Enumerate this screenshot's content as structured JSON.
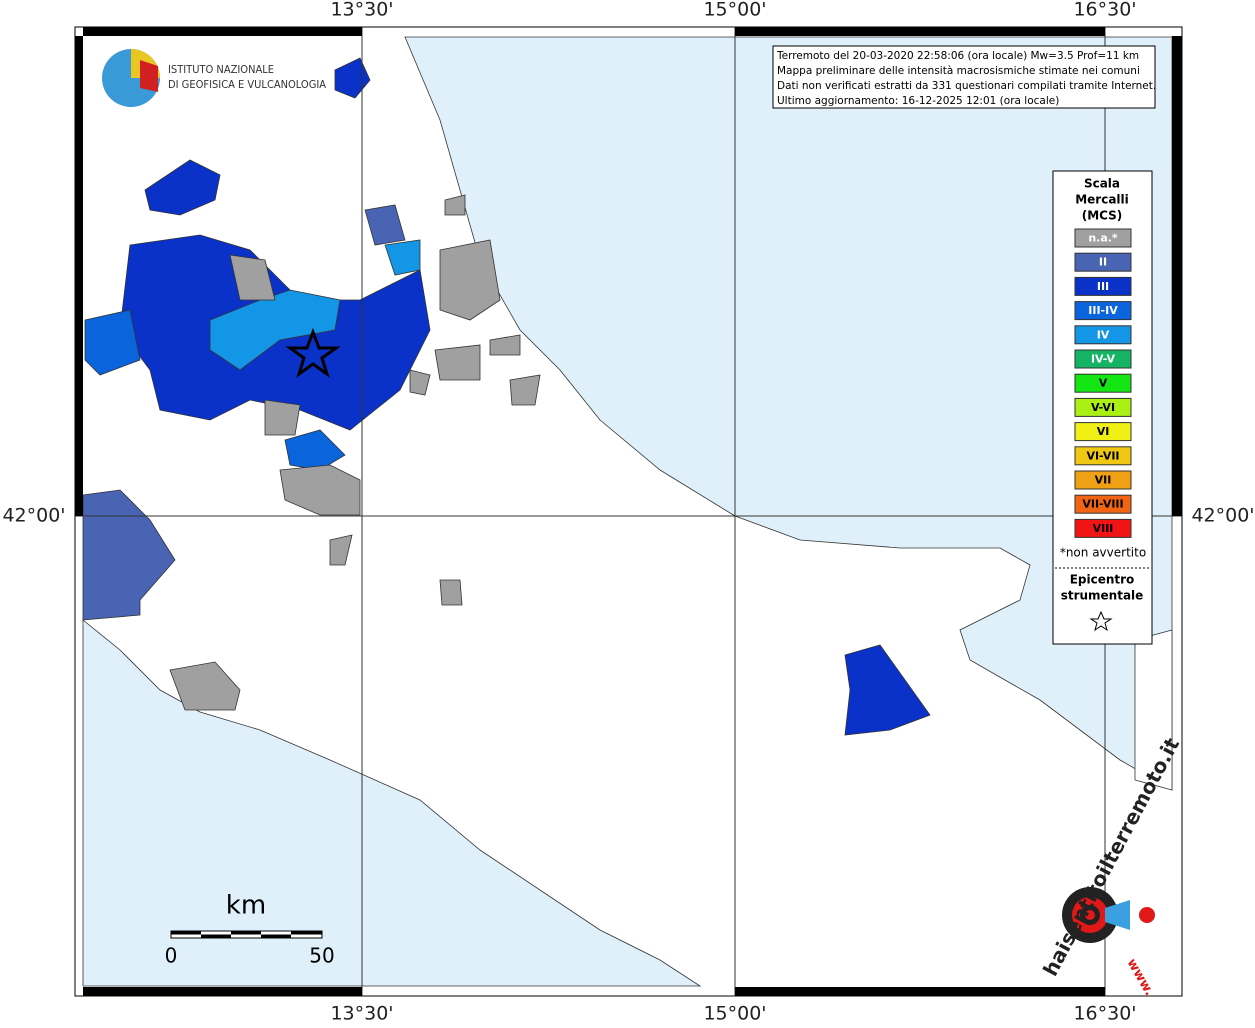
{
  "map": {
    "info_box": [
      "Terremoto del 20-03-2020 22:58:06 (ora locale) Mw=3.5 Prof=11 km",
      "Mappa preliminare delle intensità macrosismiche stimate nei comuni",
      "Dati non verificati estratti da 331 questionari compilati tramite Internet.",
      "Ultimo aggiornamento: 16-12-2025 12:01 (ora locale)"
    ],
    "logo": [
      "ISTITUTO NAZIONALE",
      "DI GEOFISICA E VULCANOLOGIA"
    ],
    "lon_labels": [
      "13°30'",
      "15°00'",
      "16°30'"
    ],
    "lat_labels": [
      "42°00'"
    ],
    "legend": {
      "title": [
        "Scala",
        "Mercalli",
        "(MCS)"
      ],
      "items": [
        {
          "label": "n.a.*",
          "color": "#a0a0a0",
          "text_color": "#ffffff"
        },
        {
          "label": "II",
          "color": "#4a64b4",
          "text_color": "#ffffff"
        },
        {
          "label": "III",
          "color": "#0a32c8",
          "text_color": "#ffffff"
        },
        {
          "label": "III-IV",
          "color": "#0a64dc",
          "text_color": "#ffffff"
        },
        {
          "label": "IV",
          "color": "#1496e6",
          "text_color": "#ffffff"
        },
        {
          "label": "IV-V",
          "color": "#14b464",
          "text_color": "#ffffff"
        },
        {
          "label": "V",
          "color": "#14e614",
          "text_color": "#000000"
        },
        {
          "label": "V-VI",
          "color": "#aaf014",
          "text_color": "#000000"
        },
        {
          "label": "VI",
          "color": "#f0f014",
          "text_color": "#000000"
        },
        {
          "label": "VI-VII",
          "color": "#f0c814",
          "text_color": "#000000"
        },
        {
          "label": "VII",
          "color": "#f0a014",
          "text_color": "#000000"
        },
        {
          "label": "VII-VIII",
          "color": "#f06414",
          "text_color": "#000000"
        },
        {
          "label": "VIII",
          "color": "#f01414",
          "text_color": "#000000"
        }
      ],
      "note": "*non avvertito",
      "epicenter": [
        "Epicentro",
        "strumentale"
      ]
    },
    "scale_bar": {
      "unit": "km",
      "start": "0",
      "end": "50"
    },
    "watermark": {
      "site": "haisentitoilterremoto.it",
      "prefix": "www."
    }
  }
}
